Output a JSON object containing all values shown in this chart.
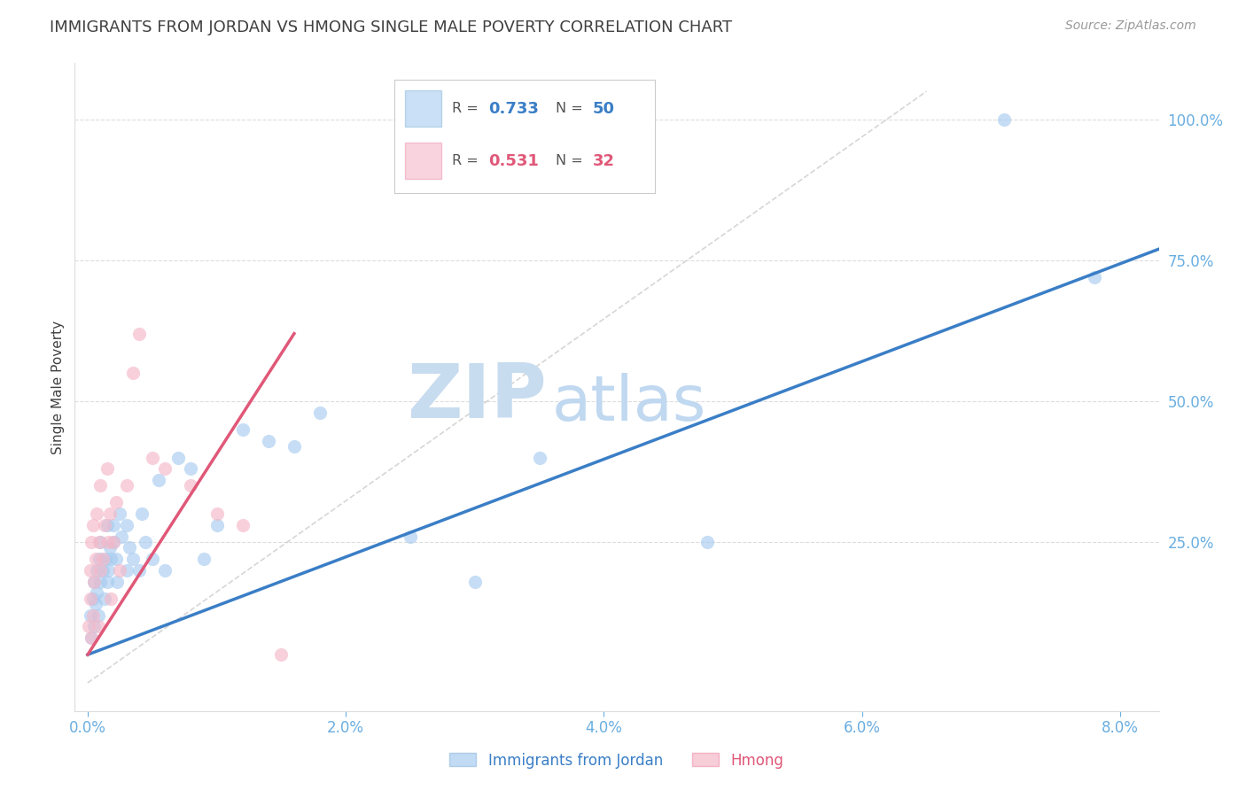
{
  "title": "IMMIGRANTS FROM JORDAN VS HMONG SINGLE MALE POVERTY CORRELATION CHART",
  "source": "Source: ZipAtlas.com",
  "ylabel_label": "Single Male Poverty",
  "x_tick_labels": [
    "0.0%",
    "2.0%",
    "4.0%",
    "6.0%",
    "8.0%"
  ],
  "x_tick_values": [
    0.0,
    0.02,
    0.04,
    0.06,
    0.08
  ],
  "y_tick_labels": [
    "25.0%",
    "50.0%",
    "75.0%",
    "100.0%"
  ],
  "y_tick_values": [
    0.25,
    0.5,
    0.75,
    1.0
  ],
  "xlim": [
    -0.001,
    0.083
  ],
  "ylim": [
    -0.05,
    1.1
  ],
  "jordan_color": "#A8CCF0",
  "hmong_color": "#F5B8C8",
  "jordan_line_color": "#3A7EC6",
  "hmong_line_color": "#E05878",
  "diagonal_line_color": "#CCCCCC",
  "background_color": "#FFFFFF",
  "grid_color": "#DDDDDD",
  "axis_color": "#6AAEE0",
  "title_color": "#404040",
  "watermark_zip": "ZIP",
  "watermark_atlas": "atlas",
  "watermark_zip_color": "#C8DCEF",
  "watermark_atlas_color": "#C0D8F0",
  "jordan_points_x": [
    0.0002,
    0.0003,
    0.0004,
    0.0005,
    0.0005,
    0.0006,
    0.0007,
    0.0007,
    0.0008,
    0.0009,
    0.001,
    0.001,
    0.0012,
    0.0013,
    0.0014,
    0.0015,
    0.0015,
    0.0016,
    0.0017,
    0.0018,
    0.002,
    0.002,
    0.0022,
    0.0023,
    0.0025,
    0.0026,
    0.003,
    0.003,
    0.0032,
    0.0035,
    0.004,
    0.0042,
    0.0045,
    0.005,
    0.0055,
    0.006,
    0.007,
    0.008,
    0.009,
    0.01,
    0.012,
    0.014,
    0.016,
    0.018,
    0.025,
    0.03,
    0.035,
    0.048,
    0.071,
    0.078
  ],
  "jordan_points_y": [
    0.12,
    0.08,
    0.15,
    0.1,
    0.18,
    0.14,
    0.2,
    0.16,
    0.12,
    0.22,
    0.18,
    0.25,
    0.2,
    0.15,
    0.22,
    0.18,
    0.28,
    0.2,
    0.24,
    0.22,
    0.25,
    0.28,
    0.22,
    0.18,
    0.3,
    0.26,
    0.2,
    0.28,
    0.24,
    0.22,
    0.2,
    0.3,
    0.25,
    0.22,
    0.36,
    0.2,
    0.4,
    0.38,
    0.22,
    0.28,
    0.45,
    0.43,
    0.42,
    0.48,
    0.26,
    0.18,
    0.4,
    0.25,
    1.0,
    0.72
  ],
  "hmong_points_x": [
    0.0001,
    0.0002,
    0.0002,
    0.0003,
    0.0003,
    0.0004,
    0.0004,
    0.0005,
    0.0006,
    0.0007,
    0.0008,
    0.0009,
    0.001,
    0.001,
    0.0012,
    0.0013,
    0.0015,
    0.0016,
    0.0017,
    0.0018,
    0.002,
    0.0022,
    0.0025,
    0.003,
    0.0035,
    0.004,
    0.005,
    0.006,
    0.008,
    0.01,
    0.012,
    0.015
  ],
  "hmong_points_y": [
    0.1,
    0.15,
    0.2,
    0.08,
    0.25,
    0.12,
    0.28,
    0.18,
    0.22,
    0.3,
    0.1,
    0.25,
    0.2,
    0.35,
    0.22,
    0.28,
    0.38,
    0.25,
    0.3,
    0.15,
    0.25,
    0.32,
    0.2,
    0.35,
    0.55,
    0.62,
    0.4,
    0.38,
    0.35,
    0.3,
    0.28,
    0.05
  ],
  "jordan_trendline_x": [
    0.0,
    0.083
  ],
  "jordan_trendline_y": [
    0.05,
    0.77
  ],
  "hmong_trendline_x": [
    0.0,
    0.016
  ],
  "hmong_trendline_y": [
    0.05,
    0.62
  ],
  "diagonal_line_x": [
    0.0,
    0.065
  ],
  "diagonal_line_y": [
    0.0,
    1.05
  ]
}
